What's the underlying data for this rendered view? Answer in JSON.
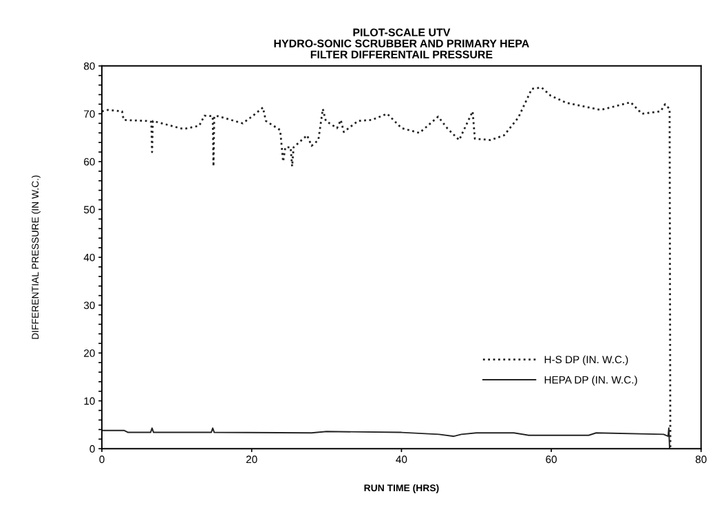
{
  "chart_data": {
    "type": "line",
    "title": "PILOT-SCALE UTV\nHYDRO-SONIC SCRUBBER AND PRIMARY HEPA\nFILTER DIFFERENTAIL PRESSURE",
    "xlabel": "RUN TIME (HRS)",
    "ylabel": "DIFFERENTIAL PRESSURE (IN W.C.)",
    "series": [
      {
        "name": "H-S DP (IN. W.C.)",
        "color": "#222222",
        "line_style": "dotted",
        "x": [
          0,
          0.8,
          2.7,
          2.9,
          6.0,
          6.6,
          6.7,
          6.8,
          10.9,
          13,
          13.7,
          14.8,
          14.9,
          15.0,
          15.5,
          18.8,
          20.1,
          21.5,
          21.9,
          23.8,
          24.2,
          24.5,
          25.2,
          25.4,
          25.6,
          27.4,
          28,
          28.9,
          29.5,
          29.9,
          31.4,
          31.9,
          32.3,
          34.2,
          36,
          38.1,
          40,
          42.4,
          44.9,
          46.1,
          47.7,
          49.5,
          49.8,
          51.9,
          53.7,
          55.6,
          57.4,
          58.7,
          59.9,
          62,
          63.5,
          66.6,
          70.6,
          72.1,
          74.6,
          75.2,
          75.8,
          75.9
        ],
        "values": [
          70.5,
          70.8,
          70.5,
          68.7,
          68.5,
          68.3,
          62,
          68.5,
          66.8,
          67.5,
          69.6,
          69.5,
          59,
          69.5,
          69.5,
          68,
          69.5,
          71.3,
          68.5,
          66.6,
          60,
          63,
          63,
          59,
          63,
          65.5,
          63.3,
          64.5,
          71,
          68.5,
          67,
          68.7,
          66.2,
          68.5,
          68.7,
          70,
          67,
          66,
          69.4,
          67,
          64.5,
          70.5,
          64.8,
          64.5,
          65.5,
          69.2,
          75.2,
          75.5,
          73.8,
          72.3,
          71.8,
          70.8,
          72.4,
          70,
          70.5,
          72,
          71,
          0
        ]
      },
      {
        "name": "HEPA DP (IN. W.C.)",
        "color": "#222222",
        "line_style": "solid",
        "x": [
          0,
          3,
          3.5,
          6.5,
          6.7,
          6.9,
          14.6,
          14.8,
          15,
          28,
          30,
          40,
          45,
          47,
          48,
          50,
          55,
          57,
          65,
          66,
          75,
          75.6,
          75.7,
          75.8
        ],
        "values": [
          3.8,
          3.8,
          3.4,
          3.4,
          4.3,
          3.4,
          3.4,
          4.3,
          3.4,
          3.3,
          3.6,
          3.4,
          3.0,
          2.6,
          3.0,
          3.3,
          3.3,
          2.8,
          2.8,
          3.3,
          3.0,
          2.6,
          4.3,
          0
        ]
      }
    ],
    "xlim": [
      0,
      80
    ],
    "xticks": [
      0,
      20,
      40,
      60,
      80
    ],
    "ylim": [
      0,
      80
    ],
    "yticks": [
      0,
      {
        "value": 2,
        "label": null
      },
      {
        "value": 4,
        "label": null
      },
      {
        "value": 6,
        "label": null
      },
      {
        "value": 8,
        "label": null
      },
      10,
      {
        "value": 12,
        "label": null
      },
      {
        "value": 14,
        "label": null
      },
      {
        "value": 16,
        "label": null
      },
      {
        "value": 18,
        "label": null
      },
      20,
      {
        "value": 22,
        "label": null
      },
      {
        "value": 24,
        "label": null
      },
      {
        "value": 26,
        "label": null
      },
      {
        "value": 28,
        "label": null
      },
      30,
      {
        "value": 32,
        "label": null
      },
      {
        "value": 34,
        "label": null
      },
      {
        "value": 36,
        "label": null
      },
      {
        "value": 38,
        "label": null
      },
      40,
      {
        "value": 42,
        "label": null
      },
      {
        "value": 44,
        "label": null
      },
      {
        "value": 46,
        "label": null
      },
      {
        "value": 48,
        "label": null
      },
      50,
      {
        "value": 52,
        "label": null
      },
      {
        "value": 54,
        "label": null
      },
      {
        "value": 56,
        "label": null
      },
      {
        "value": 58,
        "label": null
      },
      60,
      {
        "value": 62,
        "label": null
      },
      {
        "value": 64,
        "label": null
      },
      {
        "value": 66,
        "label": null
      },
      {
        "value": 68,
        "label": null
      },
      70,
      {
        "value": 72,
        "label": null
      },
      {
        "value": 74,
        "label": null
      },
      {
        "value": 76,
        "label": null
      },
      {
        "value": 78,
        "label": null
      },
      80
    ],
    "grid": false,
    "legend": "lower right",
    "marker": "none"
  }
}
